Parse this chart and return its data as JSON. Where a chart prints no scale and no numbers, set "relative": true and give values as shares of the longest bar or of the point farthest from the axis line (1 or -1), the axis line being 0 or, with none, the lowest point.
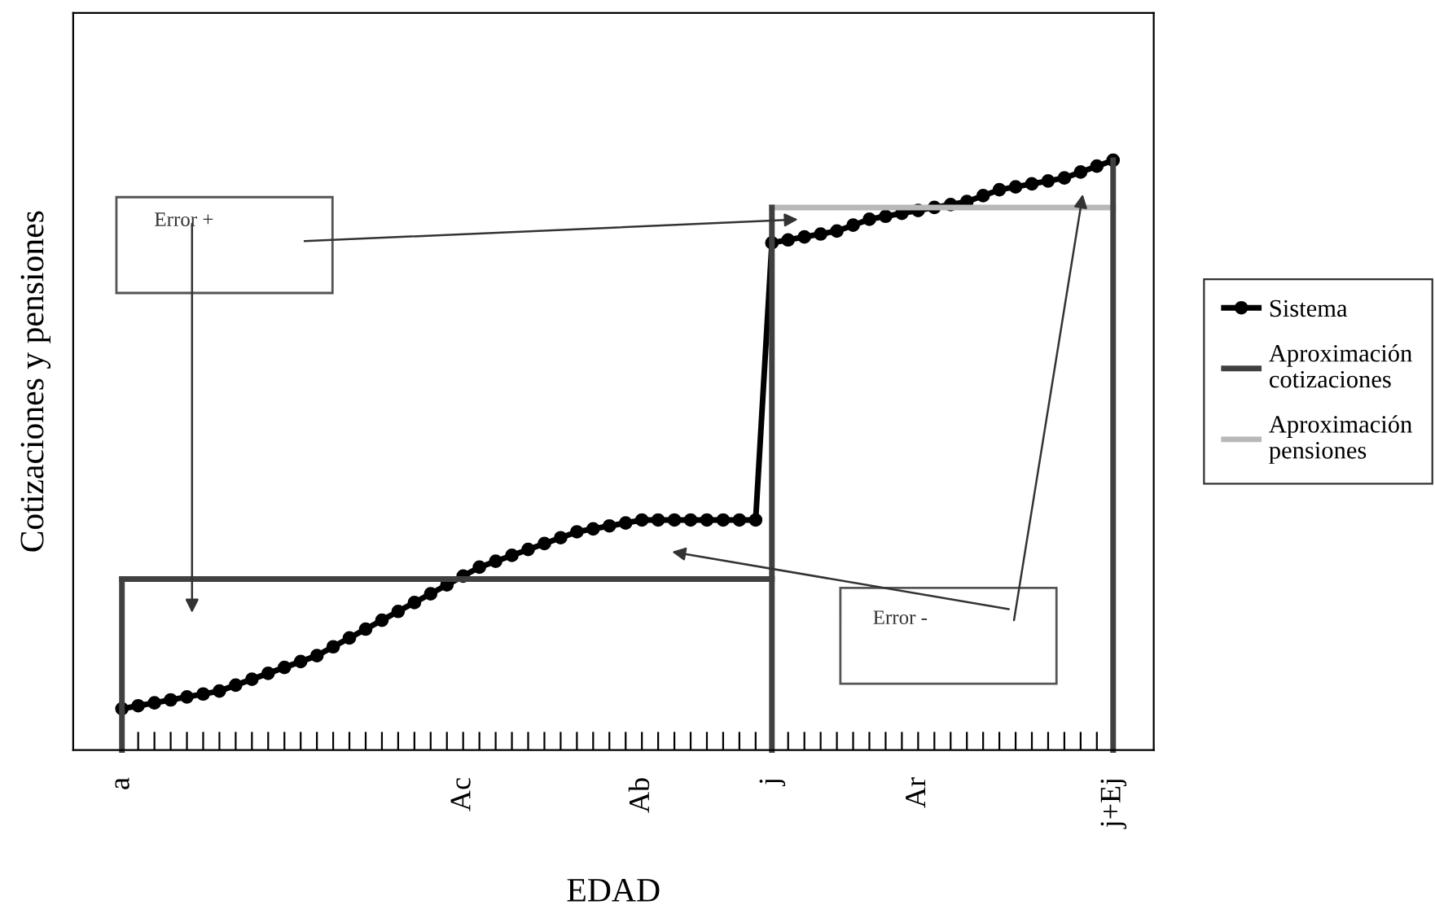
{
  "chart_data": {
    "type": "line",
    "relative": true,
    "xlabel": "EDAD",
    "ylabel": "Cotizaciones y pensiones",
    "categories": [
      "a",
      null,
      null,
      null,
      null,
      null,
      null,
      null,
      null,
      null,
      null,
      null,
      null,
      null,
      null,
      null,
      null,
      null,
      null,
      null,
      null,
      "Ac",
      null,
      null,
      null,
      null,
      null,
      null,
      null,
      null,
      null,
      null,
      "Ab",
      null,
      null,
      null,
      null,
      null,
      null,
      null,
      "j",
      null,
      null,
      null,
      null,
      null,
      null,
      null,
      null,
      "Ar",
      null,
      null,
      null,
      null,
      null,
      null,
      null,
      null,
      null,
      null,
      null,
      "j+Ej"
    ],
    "tick_labels": "x",
    "grid": false,
    "legend": "right",
    "series": [
      {
        "name": "Sistema",
        "color": "#000000",
        "marker": "circle",
        "values": [
          0.07,
          0.075,
          0.08,
          0.085,
          0.09,
          0.095,
          0.1,
          0.11,
          0.12,
          0.13,
          0.14,
          0.15,
          0.16,
          0.175,
          0.19,
          0.205,
          0.22,
          0.235,
          0.25,
          0.265,
          0.28,
          0.295,
          0.31,
          0.32,
          0.33,
          0.34,
          0.35,
          0.36,
          0.37,
          0.375,
          0.38,
          0.385,
          0.39,
          0.39,
          0.39,
          0.39,
          0.39,
          0.39,
          0.39,
          0.39,
          0.86,
          0.865,
          0.87,
          0.875,
          0.88,
          0.89,
          0.9,
          0.905,
          0.91,
          0.915,
          0.92,
          0.925,
          0.93,
          0.94,
          0.95,
          0.955,
          0.96,
          0.965,
          0.97,
          0.98,
          0.99,
          1.0
        ]
      },
      {
        "name": "Aproximación cotizaciones",
        "color": "#404040",
        "values": [
          0.29,
          0.29,
          0.29,
          0.29,
          0.29,
          0.29,
          0.29,
          0.29,
          0.29,
          0.29,
          0.29,
          0.29,
          0.29,
          0.29,
          0.29,
          0.29,
          0.29,
          0.29,
          0.29,
          0.29,
          0.29,
          0.29,
          0.29,
          0.29,
          0.29,
          0.29,
          0.29,
          0.29,
          0.29,
          0.29,
          0.29,
          0.29,
          0.29,
          0.29,
          0.29,
          0.29,
          0.29,
          0.29,
          0.29,
          0.29,
          0.29,
          null,
          null,
          null,
          null,
          null,
          null,
          null,
          null,
          null,
          null,
          null,
          null,
          null,
          null,
          null,
          null,
          null,
          null,
          null,
          null,
          null
        ]
      },
      {
        "name": "Aproximación pensiones",
        "color": "#b8b8b8",
        "values": [
          null,
          null,
          null,
          null,
          null,
          null,
          null,
          null,
          null,
          null,
          null,
          null,
          null,
          null,
          null,
          null,
          null,
          null,
          null,
          null,
          null,
          null,
          null,
          null,
          null,
          null,
          null,
          null,
          null,
          null,
          null,
          null,
          null,
          null,
          null,
          null,
          null,
          null,
          null,
          null,
          0.92,
          0.92,
          0.92,
          0.92,
          0.92,
          0.92,
          0.92,
          0.92,
          0.92,
          0.92,
          0.92,
          0.92,
          0.92,
          0.92,
          0.92,
          0.92,
          0.92,
          0.92,
          0.92,
          0.92,
          0.92,
          0.92
        ]
      }
    ],
    "ref_lines": [
      {
        "axis": "x",
        "value": "a",
        "color": "#404040"
      },
      {
        "axis": "x",
        "value": "j",
        "color": "#404040"
      },
      {
        "axis": "x",
        "value": "j+Ej",
        "color": "#404040"
      }
    ],
    "annotations": [
      "Error +",
      "Error -"
    ]
  }
}
